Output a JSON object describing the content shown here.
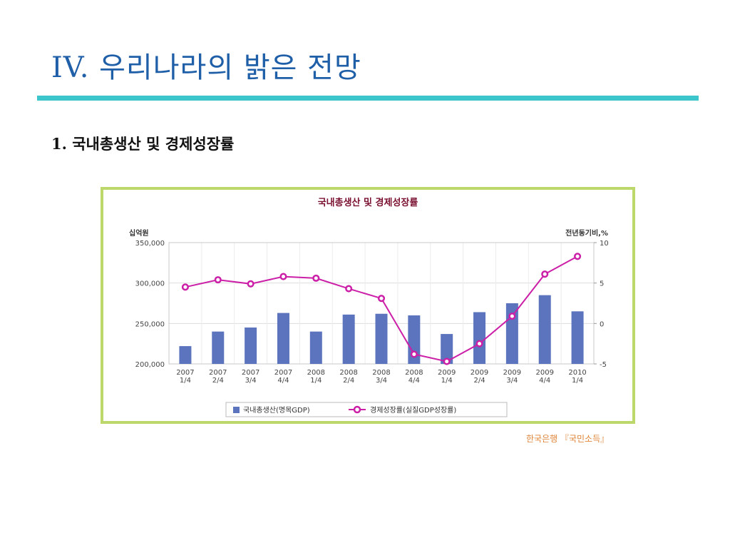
{
  "slide": {
    "title": "IV. 우리나라의 밝은 전망",
    "subtitle": "1. 국내총생산 및 경제성장률",
    "source": "한국은행 『국민소득』"
  },
  "colors": {
    "title": "#1f5fa8",
    "rule": "#3cc6cc",
    "frame": "#bcd86a",
    "bar": "#5b74bd",
    "line": "#cc1fa8",
    "chart_title": "#7a1030",
    "source": "#e0863a"
  },
  "chart_data": {
    "type": "bar",
    "title": "국내총생산 및 경제성장률",
    "ylabel_left": "십억원",
    "ylabel_right": "전년동기비,%",
    "categories": [
      [
        "2007",
        "1/4"
      ],
      [
        "2007",
        "2/4"
      ],
      [
        "2007",
        "3/4"
      ],
      [
        "2007",
        "4/4"
      ],
      [
        "2008",
        "1/4"
      ],
      [
        "2008",
        "2/4"
      ],
      [
        "2008",
        "3/4"
      ],
      [
        "2008",
        "4/4"
      ],
      [
        "2009",
        "1/4"
      ],
      [
        "2009",
        "2/4"
      ],
      [
        "2009",
        "3/4"
      ],
      [
        "2009",
        "4/4"
      ],
      [
        "2010",
        "1/4"
      ]
    ],
    "left_axis": {
      "ylim": [
        200000,
        350000
      ],
      "ticks": [
        200000,
        250000,
        300000,
        350000
      ],
      "tick_labels": [
        "200,000",
        "250,000",
        "300,000",
        "350,000"
      ]
    },
    "right_axis": {
      "ylim": [
        -5,
        10
      ],
      "ticks": [
        -5,
        0,
        5,
        10
      ],
      "tick_labels": [
        "-5",
        "0",
        "5",
        "10"
      ]
    },
    "grid": true,
    "legend_position": "bottom",
    "series": [
      {
        "name": "국내총생산(명목GDP)",
        "type": "bar",
        "axis": "left",
        "values": [
          222000,
          240000,
          245000,
          263000,
          240000,
          261000,
          262000,
          260000,
          237000,
          264000,
          275000,
          285000,
          265000
        ]
      },
      {
        "name": "경제성장률(실질GDP성장률)",
        "type": "line",
        "axis": "right",
        "values": [
          4.5,
          5.4,
          4.9,
          5.8,
          5.6,
          4.3,
          3.1,
          -3.8,
          -4.7,
          -2.5,
          0.9,
          6.1,
          8.3
        ]
      }
    ]
  }
}
